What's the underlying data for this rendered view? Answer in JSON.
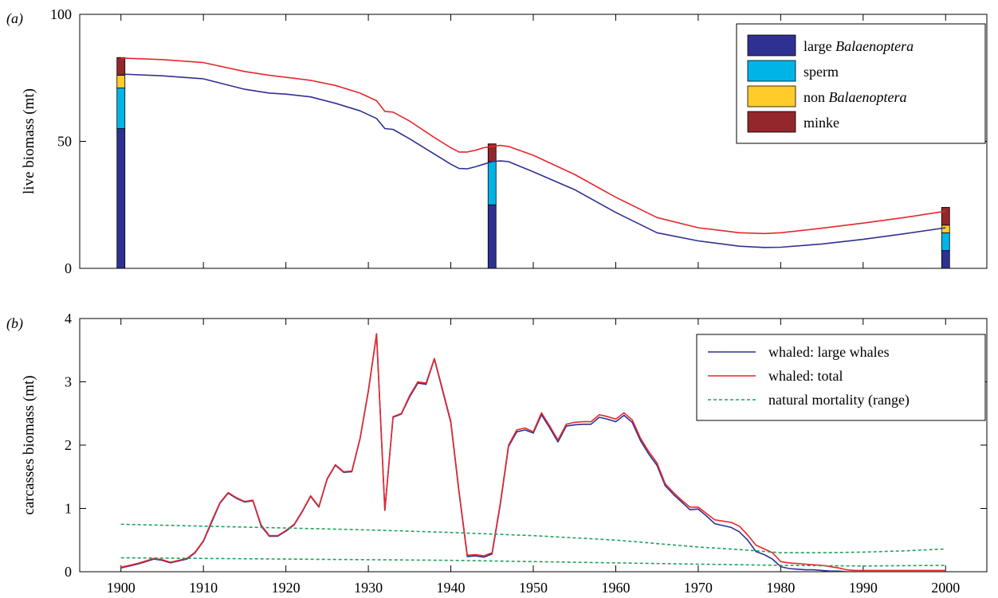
{
  "chart_data": [
    {
      "panel_label": "(a)",
      "type": "line",
      "ylabel": "live biomass (mt)",
      "xlim": [
        1895,
        2005
      ],
      "ylim": [
        0,
        100
      ],
      "yticks": [
        0,
        50,
        100
      ],
      "xticks": [
        1900,
        1910,
        1920,
        1930,
        1940,
        1950,
        1960,
        1970,
        1980,
        1990,
        2000
      ],
      "legend_position": "top-right",
      "stacked_bars": {
        "x": [
          1900,
          1945,
          2000
        ],
        "categories": [
          "large Balaenoptera",
          "sperm",
          "non Balaenoptera",
          "minke"
        ],
        "category_labels": [
          {
            "prefix": "large ",
            "italic": "Balaenoptera",
            "suffix": ""
          },
          {
            "prefix": "sperm",
            "italic": "",
            "suffix": ""
          },
          {
            "prefix": "non ",
            "italic": "Balaenoptera",
            "suffix": ""
          },
          {
            "prefix": "minke",
            "italic": "",
            "suffix": ""
          }
        ],
        "colors": [
          "#2e3192",
          "#00b4e8",
          "#ffcc29",
          "#93272c"
        ],
        "values": [
          [
            55,
            16,
            5,
            7
          ],
          [
            25,
            17,
            0,
            7
          ],
          [
            7,
            7,
            3,
            7
          ]
        ]
      },
      "series": [
        {
          "color": "#2e3192",
          "x": [
            1900,
            1905,
            1910,
            1915,
            1918,
            1920,
            1923,
            1926,
            1929,
            1931,
            1932,
            1933,
            1935,
            1938,
            1940,
            1941,
            1942,
            1943,
            1944,
            1945,
            1946,
            1947,
            1950,
            1955,
            1960,
            1965,
            1970,
            1975,
            1978,
            1980,
            1985,
            1990,
            1995,
            2000
          ],
          "y": [
            76.5,
            75.8,
            74.6,
            70.5,
            69,
            68.6,
            67.5,
            65,
            62,
            59,
            55,
            54.7,
            51,
            45,
            41,
            39.3,
            39.2,
            40,
            41,
            42,
            42.3,
            42,
            38,
            31,
            22,
            14,
            10.8,
            8.7,
            8.2,
            8.3,
            9.6,
            11.4,
            13.6,
            16
          ]
        },
        {
          "color": "#e8262b",
          "x": [
            1900,
            1905,
            1910,
            1915,
            1918,
            1920,
            1923,
            1926,
            1929,
            1931,
            1932,
            1933,
            1935,
            1938,
            1940,
            1941,
            1942,
            1943,
            1944,
            1945,
            1946,
            1947,
            1950,
            1955,
            1960,
            1965,
            1970,
            1975,
            1978,
            1980,
            1985,
            1990,
            1995,
            2000
          ],
          "y": [
            82.8,
            82.2,
            81,
            77.5,
            76,
            75.2,
            74,
            72,
            69,
            66,
            61.8,
            61.5,
            58,
            51.5,
            47.5,
            45.8,
            45.8,
            46.5,
            47.5,
            48,
            48.4,
            48,
            44.5,
            37,
            28,
            20,
            16,
            14,
            13.7,
            14,
            15.8,
            17.8,
            20,
            22.5
          ]
        }
      ]
    },
    {
      "panel_label": "(b)",
      "type": "line",
      "ylabel": "carcasses biomass (mt)",
      "xlim": [
        1895,
        2005
      ],
      "ylim": [
        0,
        4
      ],
      "yticks": [
        0,
        1,
        2,
        3,
        4
      ],
      "xticks": [
        1900,
        1910,
        1920,
        1930,
        1940,
        1950,
        1960,
        1970,
        1980,
        1990,
        2000
      ],
      "legend_position": "top-right",
      "series": [
        {
          "name": "whaled: large whales",
          "color": "#2e3192",
          "dash": "solid",
          "x": [
            1900,
            1901,
            1902,
            1903,
            1904,
            1905,
            1906,
            1907,
            1908,
            1909,
            1910,
            1911,
            1912,
            1913,
            1914,
            1915,
            1916,
            1917,
            1918,
            1919,
            1920,
            1921,
            1922,
            1923,
            1924,
            1925,
            1926,
            1927,
            1928,
            1929,
            1930,
            1931,
            1932,
            1933,
            1934,
            1935,
            1936,
            1937,
            1938,
            1939,
            1940,
            1941,
            1942,
            1943,
            1944,
            1945,
            1946,
            1947,
            1948,
            1949,
            1950,
            1951,
            1952,
            1953,
            1954,
            1955,
            1956,
            1957,
            1958,
            1959,
            1960,
            1961,
            1962,
            1963,
            1964,
            1965,
            1966,
            1967,
            1968,
            1969,
            1970,
            1971,
            1972,
            1973,
            1974,
            1975,
            1976,
            1977,
            1978,
            1979,
            1980,
            1981,
            1982,
            1983,
            1984,
            1985,
            1986,
            1987,
            1988,
            1989,
            1990,
            1995,
            2000
          ],
          "y": [
            0.06,
            0.09,
            0.12,
            0.16,
            0.2,
            0.18,
            0.14,
            0.17,
            0.2,
            0.3,
            0.48,
            0.78,
            1.08,
            1.24,
            1.16,
            1.1,
            1.12,
            0.72,
            0.56,
            0.56,
            0.64,
            0.74,
            0.95,
            1.19,
            1.02,
            1.46,
            1.68,
            1.57,
            1.58,
            2.1,
            2.85,
            3.75,
            0.97,
            2.44,
            2.49,
            2.76,
            2.98,
            2.96,
            3.36,
            2.86,
            2.36,
            1.25,
            0.24,
            0.25,
            0.23,
            0.28,
            1.06,
            1.98,
            2.21,
            2.24,
            2.19,
            2.48,
            2.27,
            2.05,
            2.3,
            2.32,
            2.33,
            2.33,
            2.44,
            2.41,
            2.37,
            2.47,
            2.36,
            2.07,
            1.86,
            1.68,
            1.36,
            1.22,
            1.1,
            0.98,
            0.99,
            0.88,
            0.76,
            0.73,
            0.7,
            0.63,
            0.5,
            0.32,
            0.27,
            0.2,
            0.08,
            0.05,
            0.04,
            0.03,
            0.03,
            0.02,
            0.01,
            0.01,
            0.0,
            0.0,
            0.0,
            0.0,
            0.0
          ]
        },
        {
          "name": "whaled: total",
          "color": "#e8262b",
          "dash": "solid",
          "x": [
            1900,
            1901,
            1902,
            1903,
            1904,
            1905,
            1906,
            1907,
            1908,
            1909,
            1910,
            1911,
            1912,
            1913,
            1914,
            1915,
            1916,
            1917,
            1918,
            1919,
            1920,
            1921,
            1922,
            1923,
            1924,
            1925,
            1926,
            1927,
            1928,
            1929,
            1930,
            1931,
            1932,
            1933,
            1934,
            1935,
            1936,
            1937,
            1938,
            1939,
            1940,
            1941,
            1942,
            1943,
            1944,
            1945,
            1946,
            1947,
            1948,
            1949,
            1950,
            1951,
            1952,
            1953,
            1954,
            1955,
            1956,
            1957,
            1958,
            1959,
            1960,
            1961,
            1962,
            1963,
            1964,
            1965,
            1966,
            1967,
            1968,
            1969,
            1970,
            1971,
            1972,
            1973,
            1974,
            1975,
            1976,
            1977,
            1978,
            1979,
            1980,
            1981,
            1982,
            1983,
            1984,
            1985,
            1986,
            1987,
            1988,
            1989,
            1990,
            1995,
            2000
          ],
          "y": [
            0.07,
            0.1,
            0.13,
            0.17,
            0.21,
            0.19,
            0.15,
            0.18,
            0.21,
            0.31,
            0.49,
            0.8,
            1.09,
            1.25,
            1.17,
            1.11,
            1.13,
            0.74,
            0.57,
            0.57,
            0.65,
            0.75,
            0.96,
            1.2,
            1.03,
            1.47,
            1.69,
            1.58,
            1.59,
            2.11,
            2.86,
            3.76,
            0.98,
            2.45,
            2.5,
            2.78,
            3.0,
            2.98,
            3.37,
            2.88,
            2.38,
            1.27,
            0.26,
            0.27,
            0.25,
            0.3,
            1.08,
            2.0,
            2.24,
            2.27,
            2.21,
            2.51,
            2.3,
            2.08,
            2.33,
            2.36,
            2.37,
            2.37,
            2.48,
            2.45,
            2.41,
            2.51,
            2.4,
            2.11,
            1.9,
            1.72,
            1.39,
            1.25,
            1.13,
            1.02,
            1.02,
            0.92,
            0.82,
            0.8,
            0.78,
            0.72,
            0.58,
            0.42,
            0.36,
            0.3,
            0.16,
            0.14,
            0.13,
            0.12,
            0.11,
            0.1,
            0.08,
            0.06,
            0.03,
            0.02,
            0.02,
            0.02,
            0.02
          ]
        },
        {
          "name": "natural mortality (range)",
          "color": "#1fa35a",
          "dash": "dashed",
          "x": [
            1900,
            1910,
            1920,
            1930,
            1940,
            1950,
            1960,
            1970,
            1975,
            1980,
            1985,
            1990,
            1995,
            2000
          ],
          "y": [
            0.75,
            0.72,
            0.69,
            0.66,
            0.62,
            0.57,
            0.5,
            0.39,
            0.35,
            0.3,
            0.3,
            0.31,
            0.33,
            0.36
          ]
        },
        {
          "name": "",
          "color": "#1fa35a",
          "dash": "dashed",
          "x": [
            1900,
            1910,
            1920,
            1930,
            1940,
            1950,
            1960,
            1970,
            1980,
            1990,
            2000
          ],
          "y": [
            0.22,
            0.21,
            0.2,
            0.19,
            0.18,
            0.16,
            0.14,
            0.12,
            0.1,
            0.09,
            0.1
          ]
        }
      ]
    }
  ]
}
